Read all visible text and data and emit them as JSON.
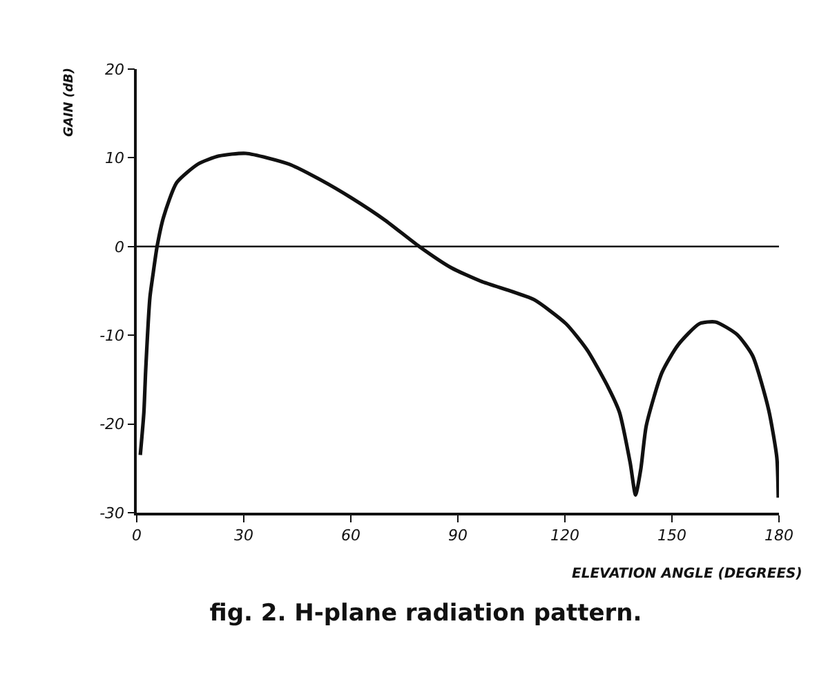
{
  "chart_data": {
    "type": "line",
    "title": "fig. 2. H-plane radiation pattern.",
    "xlabel": "ELEVATION ANGLE (DEGREES)",
    "ylabel": "GAIN (dB)",
    "x": [
      1,
      2,
      2.5,
      3.7,
      4.5,
      5.7,
      7.5,
      11.2,
      17.2,
      23,
      30.6,
      42.6,
      51.6,
      60.5,
      69.5,
      79.2,
      88.2,
      96.4,
      105.4,
      111.4,
      120.3,
      126.3,
      132.3,
      135.3,
      138.3,
      139.8,
      141.3,
      142.8,
      147.2,
      151.7,
      157.7,
      162.2,
      168.2,
      172.6,
      177.1,
      179.4,
      179.8
    ],
    "series": [
      {
        "color": "#111111",
        "values": [
          -23.5,
          -18.7,
          -14,
          -5.7,
          -3.3,
          0,
          3.3,
          7.2,
          9.3,
          10.2,
          10.5,
          9.3,
          7.5,
          5.4,
          3,
          0,
          -2.4,
          -3.9,
          -5.1,
          -6,
          -8.7,
          -11.7,
          -16,
          -18.7,
          -24.4,
          -28,
          -25,
          -20.2,
          -14.2,
          -11.1,
          -8.7,
          -8.5,
          -9.9,
          -12.3,
          -18.4,
          -23.8,
          -28.3
        ]
      }
    ],
    "xlim": [
      0,
      180
    ],
    "xticks": [
      0,
      30,
      60,
      90,
      120,
      150,
      180
    ],
    "ylim": [
      -30,
      20
    ],
    "yticks": [
      -30,
      -20,
      -10,
      0,
      10,
      20
    ],
    "ref_lines": [
      {
        "axis": "y",
        "value": 0,
        "color": "#111111"
      }
    ],
    "grid": false,
    "marker": "none",
    "line_style": "solid"
  }
}
